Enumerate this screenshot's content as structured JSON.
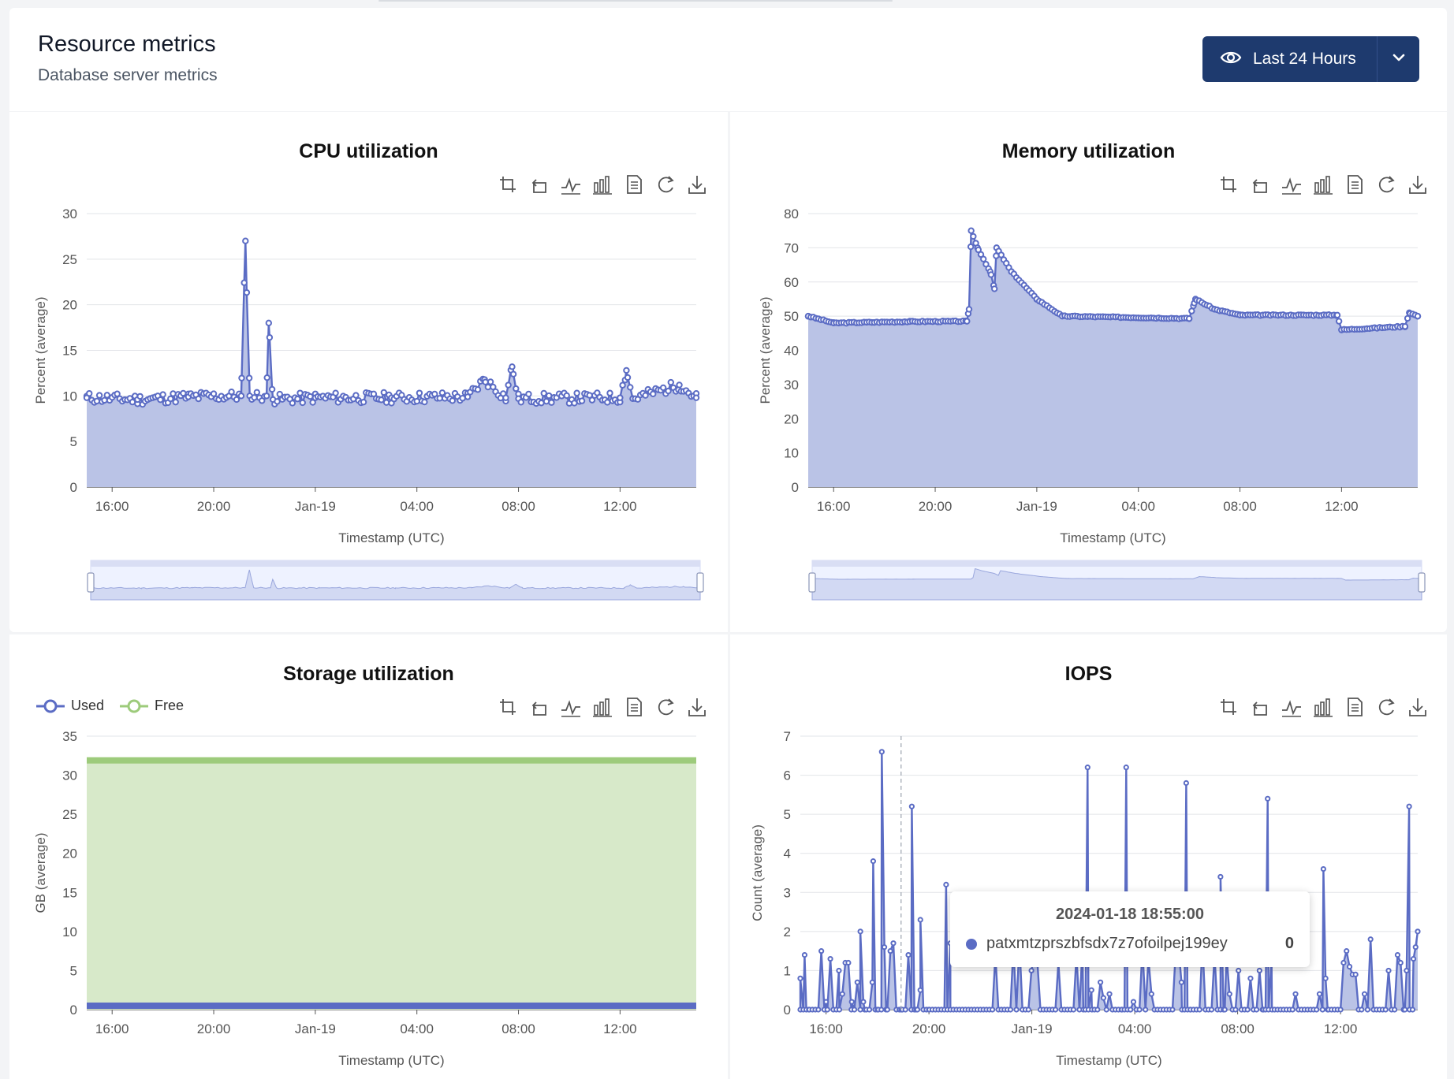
{
  "header": {
    "title": "Resource metrics",
    "subtitle": "Database server metrics",
    "range_label": "Last 24 Hours"
  },
  "colors": {
    "series": "#5b6cc4",
    "area": "#bac3e6",
    "free": "#9dcb7b",
    "free_area": "#d7e9c9",
    "accent": "#1e3a6e"
  },
  "charts": [
    {
      "id": "cpu",
      "title": "CPU utilization",
      "ylabel": "Percent (average)",
      "xlabel": "Timestamp (UTC)",
      "yticks": [
        "0",
        "5",
        "10",
        "15",
        "20",
        "25",
        "30"
      ],
      "xticks": [
        "16:00",
        "20:00",
        "Jan-19",
        "04:00",
        "08:00",
        "12:00"
      ]
    },
    {
      "id": "mem",
      "title": "Memory utilization",
      "ylabel": "Percent (average)",
      "xlabel": "Timestamp (UTC)",
      "yticks": [
        "0",
        "10",
        "20",
        "30",
        "40",
        "50",
        "60",
        "70",
        "80"
      ],
      "xticks": [
        "16:00",
        "20:00",
        "Jan-19",
        "04:00",
        "08:00",
        "12:00"
      ]
    },
    {
      "id": "storage",
      "title": "Storage utilization",
      "ylabel": "GB (average)",
      "xlabel": "Timestamp (UTC)",
      "legend": [
        "Used",
        "Free"
      ],
      "yticks": [
        "0",
        "5",
        "10",
        "15",
        "20",
        "25",
        "30",
        "35"
      ],
      "xticks": [
        "16:00",
        "20:00",
        "Jan-19",
        "04:00",
        "08:00",
        "12:00"
      ]
    },
    {
      "id": "iops",
      "title": "IOPS",
      "ylabel": "Count (average)",
      "xlabel": "Timestamp (UTC)",
      "yticks": [
        "0",
        "1",
        "2",
        "3",
        "4",
        "5",
        "6",
        "7"
      ],
      "xticks": [
        "16:00",
        "20:00",
        "Jan-19",
        "04:00",
        "08:00",
        "12:00"
      ],
      "tooltip": {
        "time": "2024-01-18 18:55:00",
        "series": "patxmtzprszbfsdx7z7ofoilpej199ey",
        "value": "0"
      }
    }
  ],
  "toolbox": [
    "zoom-icon",
    "zoom-reset-icon",
    "line-chart-icon",
    "bar-chart-icon",
    "data-view-icon",
    "restore-icon",
    "download-icon"
  ],
  "chart_data": [
    {
      "type": "area",
      "title": "CPU utilization",
      "xlabel": "Timestamp (UTC)",
      "ylabel": "Percent (average)",
      "ylim": [
        0,
        30
      ],
      "x_range": [
        "2024-01-18 15:00",
        "2024-01-19 15:00"
      ],
      "series": [
        {
          "name": "",
          "points": [
            [
              "2024-01-18 15:00",
              9.8
            ],
            [
              "2024-01-18 17:00",
              9.6
            ],
            [
              "2024-01-18 19:00",
              9.9
            ],
            [
              "2024-01-18 21:05",
              10
            ],
            [
              "2024-01-18 21:15",
              27
            ],
            [
              "2024-01-18 21:25",
              10
            ],
            [
              "2024-01-18 22:05",
              10
            ],
            [
              "2024-01-18 22:10",
              18
            ],
            [
              "2024-01-18 22:20",
              9.6
            ],
            [
              "2024-01-19 00:00",
              9.8
            ],
            [
              "2024-01-19 03:00",
              9.8
            ],
            [
              "2024-01-19 06:00",
              9.9
            ],
            [
              "2024-01-19 06:40",
              11.8
            ],
            [
              "2024-01-19 07:30",
              9.8
            ],
            [
              "2024-01-19 07:45",
              13.2
            ],
            [
              "2024-01-19 08:00",
              9.7
            ],
            [
              "2024-01-19 12:00",
              9.8
            ],
            [
              "2024-01-19 12:15",
              12.8
            ],
            [
              "2024-01-19 12:30",
              9.7
            ],
            [
              "2024-01-19 14:20",
              11.2
            ],
            [
              "2024-01-19 15:00",
              9.8
            ]
          ]
        }
      ]
    },
    {
      "type": "area",
      "title": "Memory utilization",
      "xlabel": "Timestamp (UTC)",
      "ylabel": "Percent (average)",
      "ylim": [
        0,
        80
      ],
      "x_range": [
        "2024-01-18 15:00",
        "2024-01-19 15:00"
      ],
      "series": [
        {
          "name": "",
          "points": [
            [
              "2024-01-18 15:00",
              50
            ],
            [
              "2024-01-18 16:00",
              48
            ],
            [
              "2024-01-18 19:00",
              48.4
            ],
            [
              "2024-01-18 21:15",
              48.5
            ],
            [
              "2024-01-18 21:20",
              52
            ],
            [
              "2024-01-18 21:25",
              75
            ],
            [
              "2024-01-18 21:40",
              70
            ],
            [
              "2024-01-18 22:10",
              63
            ],
            [
              "2024-01-18 22:20",
              58
            ],
            [
              "2024-01-18 22:25",
              70
            ],
            [
              "2024-01-18 23:00",
              63
            ],
            [
              "2024-01-19 00:00",
              55
            ],
            [
              "2024-01-19 01:00",
              50
            ],
            [
              "2024-01-19 06:00",
              49.3
            ],
            [
              "2024-01-19 06:10",
              53
            ],
            [
              "2024-01-19 06:15",
              55
            ],
            [
              "2024-01-19 07:00",
              52
            ],
            [
              "2024-01-19 08:00",
              50.3
            ],
            [
              "2024-01-19 11:50",
              50.3
            ],
            [
              "2024-01-19 12:00",
              46
            ],
            [
              "2024-01-19 14:30",
              47
            ],
            [
              "2024-01-19 14:40",
              51
            ],
            [
              "2024-01-19 15:00",
              50
            ]
          ]
        }
      ]
    },
    {
      "type": "area",
      "title": "Storage utilization",
      "xlabel": "Timestamp (UTC)",
      "ylabel": "GB (average)",
      "ylim": [
        0,
        35
      ],
      "x_range": [
        "2024-01-18 15:00",
        "2024-01-19 15:00"
      ],
      "series": [
        {
          "name": "Used",
          "points": [
            [
              "2024-01-18 15:00",
              0.5
            ],
            [
              "2024-01-19 15:00",
              0.5
            ]
          ]
        },
        {
          "name": "Free",
          "points": [
            [
              "2024-01-18 15:00",
              31.9
            ],
            [
              "2024-01-19 15:00",
              31.9
            ]
          ]
        }
      ]
    },
    {
      "type": "line",
      "title": "IOPS",
      "xlabel": "Timestamp (UTC)",
      "ylabel": "Count (average)",
      "ylim": [
        0,
        7
      ],
      "x_range": [
        "2024-01-18 15:00",
        "2024-01-19 15:00"
      ],
      "series": [
        {
          "name": "patxmtzprszbfsdx7z7ofoilpej199ey",
          "points": [
            [
              "2024-01-18 15:00",
              0.8
            ],
            [
              "2024-01-18 15:10",
              1.4
            ],
            [
              "2024-01-18 15:20",
              0
            ],
            [
              "2024-01-18 16:00",
              0.2
            ],
            [
              "2024-01-18 16:30",
              1
            ],
            [
              "2024-01-18 17:00",
              0.2
            ],
            [
              "2024-01-18 17:20",
              2
            ],
            [
              "2024-01-18 17:30",
              0
            ],
            [
              "2024-01-18 17:50",
              3.8
            ],
            [
              "2024-01-18 18:00",
              0
            ],
            [
              "2024-01-18 18:10",
              6.6
            ],
            [
              "2024-01-18 18:20",
              0
            ],
            [
              "2024-01-18 18:55",
              0
            ],
            [
              "2024-01-18 19:20",
              5.2
            ],
            [
              "2024-01-18 19:30",
              0
            ],
            [
              "2024-01-18 19:40",
              2.3
            ],
            [
              "2024-01-18 20:00",
              0
            ],
            [
              "2024-01-18 20:40",
              3.2
            ],
            [
              "2024-01-18 20:50",
              0
            ],
            [
              "2024-01-19 02:00",
              0
            ],
            [
              "2024-01-19 02:10",
              6.2
            ],
            [
              "2024-01-19 02:20",
              0
            ],
            [
              "2024-01-19 03:30",
              0
            ],
            [
              "2024-01-19 03:40",
              6.2
            ],
            [
              "2024-01-19 03:50",
              0
            ],
            [
              "2024-01-19 05:50",
              0
            ],
            [
              "2024-01-19 06:00",
              5.8
            ],
            [
              "2024-01-19 06:10",
              0
            ],
            [
              "2024-01-19 07:20",
              3.4
            ],
            [
              "2024-01-19 07:30",
              0
            ],
            [
              "2024-01-19 09:00",
              0
            ],
            [
              "2024-01-19 09:10",
              5.4
            ],
            [
              "2024-01-19 09:20",
              0
            ],
            [
              "2024-01-19 11:20",
              3.6
            ],
            [
              "2024-01-19 11:30",
              0
            ],
            [
              "2024-01-19 14:30",
              0
            ],
            [
              "2024-01-19 14:40",
              5.2
            ],
            [
              "2024-01-19 14:50",
              1.3
            ],
            [
              "2024-01-19 15:00",
              2
            ]
          ]
        }
      ]
    }
  ]
}
